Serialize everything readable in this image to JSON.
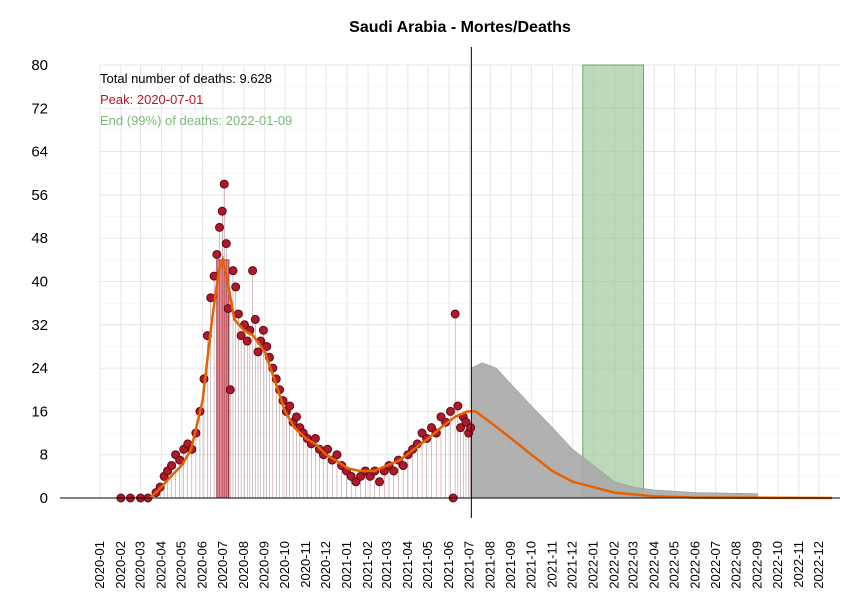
{
  "chart_data": {
    "type": "scatter",
    "title": "Saudi Arabia - Mortes/Deaths",
    "xlabel": "",
    "ylabel": "",
    "ylim": [
      0,
      80
    ],
    "y_ticks": [
      0,
      8,
      16,
      24,
      32,
      40,
      48,
      56,
      64,
      72,
      80
    ],
    "x_range": [
      "2020-01-01",
      "2023-01-01"
    ],
    "x_ticks": [
      "2020-01",
      "2020-02",
      "2020-03",
      "2020-04",
      "2020-05",
      "2020-06",
      "2020-07",
      "2020-08",
      "2020-09",
      "2020-10",
      "2020-11",
      "2020-12",
      "2021-01",
      "2021-02",
      "2021-03",
      "2021-04",
      "2021-05",
      "2021-06",
      "2021-07",
      "2021-08",
      "2021-09",
      "2021-10",
      "2021-11",
      "2021-12",
      "2022-01",
      "2022-02",
      "2022-03",
      "2022-04",
      "2022-05",
      "2022-06",
      "2022-07",
      "2022-08",
      "2022-09",
      "2022-10",
      "2022-11",
      "2022-12"
    ],
    "grid": true,
    "annotations": [
      {
        "text": "Total number of deaths: 9.628",
        "color": "#000000"
      },
      {
        "text": "Peak: 2020-07-01",
        "color": "#B2182B"
      },
      {
        "text": "End (99%) of deaths: 2022-01-09",
        "color": "#7FB77E"
      }
    ],
    "vertical_line_date": "2021-07-04",
    "peak_band": {
      "start": "2020-06-22",
      "end": "2020-07-10",
      "height": 44,
      "color": "#D9636F"
    },
    "end_band": {
      "start": "2021-12-16",
      "end": "2022-03-16",
      "color": "#8FBF8C"
    },
    "observed_points": [
      {
        "x": "2020-02-01",
        "y": 0
      },
      {
        "x": "2020-02-15",
        "y": 0
      },
      {
        "x": "2020-03-01",
        "y": 0
      },
      {
        "x": "2020-03-12",
        "y": 0
      },
      {
        "x": "2020-03-24",
        "y": 1
      },
      {
        "x": "2020-03-30",
        "y": 2
      },
      {
        "x": "2020-04-05",
        "y": 4
      },
      {
        "x": "2020-04-10",
        "y": 5
      },
      {
        "x": "2020-04-16",
        "y": 6
      },
      {
        "x": "2020-04-22",
        "y": 8
      },
      {
        "x": "2020-04-28",
        "y": 7
      },
      {
        "x": "2020-05-04",
        "y": 9
      },
      {
        "x": "2020-05-10",
        "y": 10
      },
      {
        "x": "2020-05-16",
        "y": 9
      },
      {
        "x": "2020-05-22",
        "y": 12
      },
      {
        "x": "2020-05-28",
        "y": 16
      },
      {
        "x": "2020-06-03",
        "y": 22
      },
      {
        "x": "2020-06-08",
        "y": 30
      },
      {
        "x": "2020-06-13",
        "y": 37
      },
      {
        "x": "2020-06-18",
        "y": 41
      },
      {
        "x": "2020-06-22",
        "y": 45
      },
      {
        "x": "2020-06-26",
        "y": 50
      },
      {
        "x": "2020-06-30",
        "y": 53
      },
      {
        "x": "2020-07-03",
        "y": 58
      },
      {
        "x": "2020-07-06",
        "y": 47
      },
      {
        "x": "2020-07-09",
        "y": 35
      },
      {
        "x": "2020-07-12",
        "y": 20
      },
      {
        "x": "2020-07-16",
        "y": 42
      },
      {
        "x": "2020-07-20",
        "y": 39
      },
      {
        "x": "2020-07-24",
        "y": 34
      },
      {
        "x": "2020-07-28",
        "y": 30
      },
      {
        "x": "2020-08-02",
        "y": 32
      },
      {
        "x": "2020-08-06",
        "y": 29
      },
      {
        "x": "2020-08-10",
        "y": 31
      },
      {
        "x": "2020-08-14",
        "y": 42
      },
      {
        "x": "2020-08-18",
        "y": 33
      },
      {
        "x": "2020-08-22",
        "y": 27
      },
      {
        "x": "2020-08-26",
        "y": 29
      },
      {
        "x": "2020-08-30",
        "y": 31
      },
      {
        "x": "2020-09-04",
        "y": 28
      },
      {
        "x": "2020-09-08",
        "y": 26
      },
      {
        "x": "2020-09-13",
        "y": 24
      },
      {
        "x": "2020-09-18",
        "y": 22
      },
      {
        "x": "2020-09-23",
        "y": 20
      },
      {
        "x": "2020-09-28",
        "y": 18
      },
      {
        "x": "2020-10-03",
        "y": 16
      },
      {
        "x": "2020-10-08",
        "y": 17
      },
      {
        "x": "2020-10-13",
        "y": 14
      },
      {
        "x": "2020-10-18",
        "y": 15
      },
      {
        "x": "2020-10-23",
        "y": 13
      },
      {
        "x": "2020-10-28",
        "y": 12
      },
      {
        "x": "2020-11-03",
        "y": 11
      },
      {
        "x": "2020-11-09",
        "y": 10
      },
      {
        "x": "2020-11-15",
        "y": 11
      },
      {
        "x": "2020-11-21",
        "y": 9
      },
      {
        "x": "2020-11-27",
        "y": 8
      },
      {
        "x": "2020-12-03",
        "y": 9
      },
      {
        "x": "2020-12-10",
        "y": 7
      },
      {
        "x": "2020-12-17",
        "y": 8
      },
      {
        "x": "2020-12-24",
        "y": 6
      },
      {
        "x": "2020-12-31",
        "y": 5
      },
      {
        "x": "2021-01-07",
        "y": 4
      },
      {
        "x": "2021-01-14",
        "y": 3
      },
      {
        "x": "2021-01-21",
        "y": 4
      },
      {
        "x": "2021-01-28",
        "y": 5
      },
      {
        "x": "2021-02-04",
        "y": 4
      },
      {
        "x": "2021-02-11",
        "y": 5
      },
      {
        "x": "2021-02-18",
        "y": 3
      },
      {
        "x": "2021-02-25",
        "y": 5
      },
      {
        "x": "2021-03-04",
        "y": 6
      },
      {
        "x": "2021-03-11",
        "y": 5
      },
      {
        "x": "2021-03-18",
        "y": 7
      },
      {
        "x": "2021-03-25",
        "y": 6
      },
      {
        "x": "2021-04-01",
        "y": 8
      },
      {
        "x": "2021-04-08",
        "y": 9
      },
      {
        "x": "2021-04-15",
        "y": 10
      },
      {
        "x": "2021-04-22",
        "y": 12
      },
      {
        "x": "2021-04-29",
        "y": 11
      },
      {
        "x": "2021-05-06",
        "y": 13
      },
      {
        "x": "2021-05-13",
        "y": 12
      },
      {
        "x": "2021-05-20",
        "y": 15
      },
      {
        "x": "2021-05-27",
        "y": 14
      },
      {
        "x": "2021-06-03",
        "y": 16
      },
      {
        "x": "2021-06-07",
        "y": 0
      },
      {
        "x": "2021-06-10",
        "y": 34
      },
      {
        "x": "2021-06-14",
        "y": 17
      },
      {
        "x": "2021-06-18",
        "y": 13
      },
      {
        "x": "2021-06-22",
        "y": 15
      },
      {
        "x": "2021-06-26",
        "y": 14
      },
      {
        "x": "2021-06-30",
        "y": 12
      },
      {
        "x": "2021-07-03",
        "y": 13
      }
    ],
    "fit_curve": [
      {
        "x": "2020-03-15",
        "y": 0
      },
      {
        "x": "2020-04-01",
        "y": 2
      },
      {
        "x": "2020-04-15",
        "y": 4
      },
      {
        "x": "2020-05-01",
        "y": 6
      },
      {
        "x": "2020-05-15",
        "y": 9
      },
      {
        "x": "2020-06-01",
        "y": 18
      },
      {
        "x": "2020-06-15",
        "y": 33
      },
      {
        "x": "2020-06-25",
        "y": 42
      },
      {
        "x": "2020-07-01",
        "y": 44
      },
      {
        "x": "2020-07-08",
        "y": 40
      },
      {
        "x": "2020-07-18",
        "y": 33
      },
      {
        "x": "2020-08-01",
        "y": 31
      },
      {
        "x": "2020-08-15",
        "y": 30
      },
      {
        "x": "2020-09-01",
        "y": 27
      },
      {
        "x": "2020-09-15",
        "y": 22
      },
      {
        "x": "2020-10-01",
        "y": 16
      },
      {
        "x": "2020-10-15",
        "y": 13
      },
      {
        "x": "2020-11-01",
        "y": 11
      },
      {
        "x": "2020-11-15",
        "y": 10
      },
      {
        "x": "2020-12-01",
        "y": 8
      },
      {
        "x": "2020-12-15",
        "y": 7
      },
      {
        "x": "2021-01-01",
        "y": 5.5
      },
      {
        "x": "2021-01-20",
        "y": 5
      },
      {
        "x": "2021-02-10",
        "y": 5
      },
      {
        "x": "2021-03-01",
        "y": 6
      },
      {
        "x": "2021-03-20",
        "y": 7
      },
      {
        "x": "2021-04-10",
        "y": 9
      },
      {
        "x": "2021-05-01",
        "y": 11
      },
      {
        "x": "2021-05-20",
        "y": 13
      },
      {
        "x": "2021-06-10",
        "y": 15
      },
      {
        "x": "2021-06-28",
        "y": 16
      },
      {
        "x": "2021-07-10",
        "y": 16
      },
      {
        "x": "2021-08-01",
        "y": 14
      },
      {
        "x": "2021-09-01",
        "y": 11
      },
      {
        "x": "2021-10-01",
        "y": 8
      },
      {
        "x": "2021-11-01",
        "y": 5
      },
      {
        "x": "2021-12-01",
        "y": 3
      },
      {
        "x": "2022-01-01",
        "y": 2
      },
      {
        "x": "2022-02-01",
        "y": 1
      },
      {
        "x": "2022-04-01",
        "y": 0.3
      },
      {
        "x": "2022-06-01",
        "y": 0.1
      },
      {
        "x": "2022-12-20",
        "y": 0
      }
    ],
    "prediction_band": [
      {
        "x": "2021-07-04",
        "upper": 24
      },
      {
        "x": "2021-07-20",
        "upper": 25
      },
      {
        "x": "2021-08-10",
        "upper": 24
      },
      {
        "x": "2021-09-01",
        "upper": 21
      },
      {
        "x": "2021-10-01",
        "upper": 17
      },
      {
        "x": "2021-11-01",
        "upper": 13
      },
      {
        "x": "2021-12-01",
        "upper": 9
      },
      {
        "x": "2022-01-01",
        "upper": 6
      },
      {
        "x": "2022-02-01",
        "upper": 3
      },
      {
        "x": "2022-03-01",
        "upper": 2
      },
      {
        "x": "2022-04-01",
        "upper": 1.5
      },
      {
        "x": "2022-06-01",
        "upper": 1
      },
      {
        "x": "2022-09-01",
        "upper": 0.8
      },
      {
        "x": "2022-09-02",
        "upper": 0
      }
    ],
    "colors": {
      "points_fill": "#B2182B",
      "points_stroke": "#5A0A12",
      "fit_line": "#E66101",
      "prediction_band": "#A9A9A9",
      "vline": "#000000",
      "grid": "#E6E6E6"
    }
  }
}
